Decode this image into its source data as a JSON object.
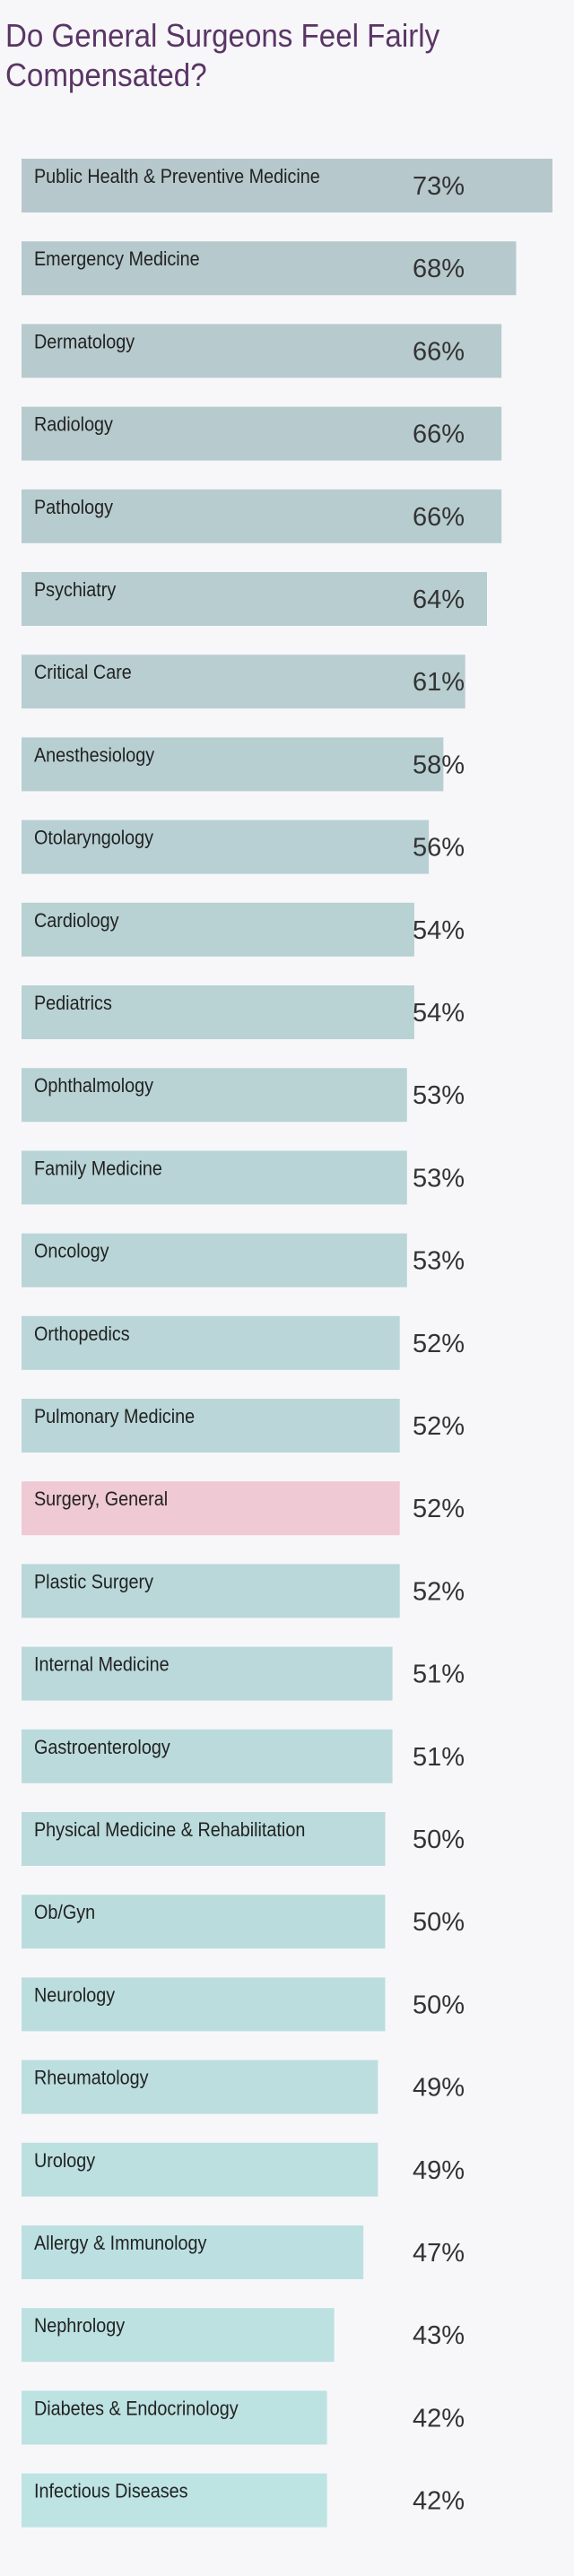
{
  "chart_data": {
    "type": "bar",
    "orientation": "horizontal",
    "title": "Do General Surgeons Feel Fairly Compensated?",
    "xlim": [
      0,
      73
    ],
    "categories": [
      "Public Health & Preventive Medicine",
      "Emergency Medicine",
      "Dermatology",
      "Radiology",
      "Pathology",
      "Psychiatry",
      "Critical Care",
      "Anesthesiology",
      "Otolaryngology",
      "Cardiology",
      "Pediatrics",
      "Ophthalmology",
      "Family Medicine",
      "Oncology",
      "Orthopedics",
      "Pulmonary Medicine",
      "Surgery, General",
      "Plastic Surgery",
      "Internal Medicine",
      "Gastroenterology",
      "Physical Medicine & Rehabilitation",
      "Ob/Gyn",
      "Neurology",
      "Rheumatology",
      "Urology",
      "Allergy & Immunology",
      "Nephrology",
      "Diabetes & Endocrinology",
      "Infectious Diseases"
    ],
    "values": [
      73,
      68,
      66,
      66,
      66,
      64,
      61,
      58,
      56,
      54,
      54,
      53,
      53,
      53,
      52,
      52,
      52,
      52,
      51,
      51,
      50,
      50,
      50,
      49,
      49,
      47,
      43,
      42,
      42
    ],
    "value_labels": [
      "73%",
      "68%",
      "66%",
      "66%",
      "66%",
      "64%",
      "61%",
      "58%",
      "56%",
      "54%",
      "54%",
      "53%",
      "53%",
      "53%",
      "52%",
      "52%",
      "52%",
      "52%",
      "51%",
      "51%",
      "50%",
      "50%",
      "50%",
      "49%",
      "49%",
      "47%",
      "43%",
      "42%",
      "42%"
    ],
    "highlight_category": "Surgery, General",
    "colors": {
      "title": "#5a3566",
      "highlight_bar": "#efc9d3",
      "highlight_text": "#c8325f",
      "bar_gradient_start": "#b6c8cc",
      "bar_gradient_end": "#bde3e3",
      "bar_text": "#222222",
      "value_text": "#333333"
    }
  }
}
